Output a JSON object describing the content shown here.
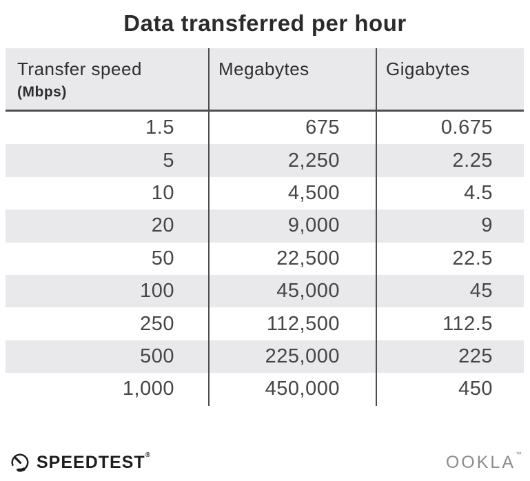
{
  "title": "Data transferred per hour",
  "table": {
    "columns": [
      {
        "label": "Transfer speed",
        "sublabel": "(Mbps)"
      },
      {
        "label": "Megabytes",
        "sublabel": ""
      },
      {
        "label": "Gigabytes",
        "sublabel": ""
      }
    ],
    "rows": [
      [
        "1.5",
        "675",
        "0.675"
      ],
      [
        "5",
        "2,250",
        "2.25"
      ],
      [
        "10",
        "4,500",
        "4.5"
      ],
      [
        "20",
        "9,000",
        "9"
      ],
      [
        "50",
        "22,500",
        "22.5"
      ],
      [
        "100",
        "45,000",
        "45"
      ],
      [
        "250",
        "112,500",
        "112.5"
      ],
      [
        "500",
        "225,000",
        "225"
      ],
      [
        "1,000",
        "450,000",
        "450"
      ]
    ]
  },
  "footer": {
    "speedtest_text": "SPEEDTEST",
    "speedtest_reg": "®",
    "ookla_text": "OOKLA",
    "ookla_tm": "™"
  },
  "colors": {
    "header_bg": "#e9e8ea",
    "zebra_bg": "#e9e8ea",
    "rule": "#4d4d4f",
    "title_text": "#2b2b2b",
    "number_text": "#454547",
    "speedtest_black": "#1c1c1e",
    "ookla_gray": "#8c8b8d"
  },
  "chart_data": {
    "type": "table",
    "title": "Data transferred per hour",
    "columns": [
      "Transfer speed (Mbps)",
      "Megabytes",
      "Gigabytes"
    ],
    "rows": [
      [
        1.5,
        675,
        0.675
      ],
      [
        5,
        2250,
        2.25
      ],
      [
        10,
        4500,
        4.5
      ],
      [
        20,
        9000,
        9
      ],
      [
        50,
        22500,
        22.5
      ],
      [
        100,
        45000,
        45
      ],
      [
        250,
        112500,
        112.5
      ],
      [
        500,
        225000,
        225
      ],
      [
        1000,
        450000,
        450
      ]
    ]
  }
}
